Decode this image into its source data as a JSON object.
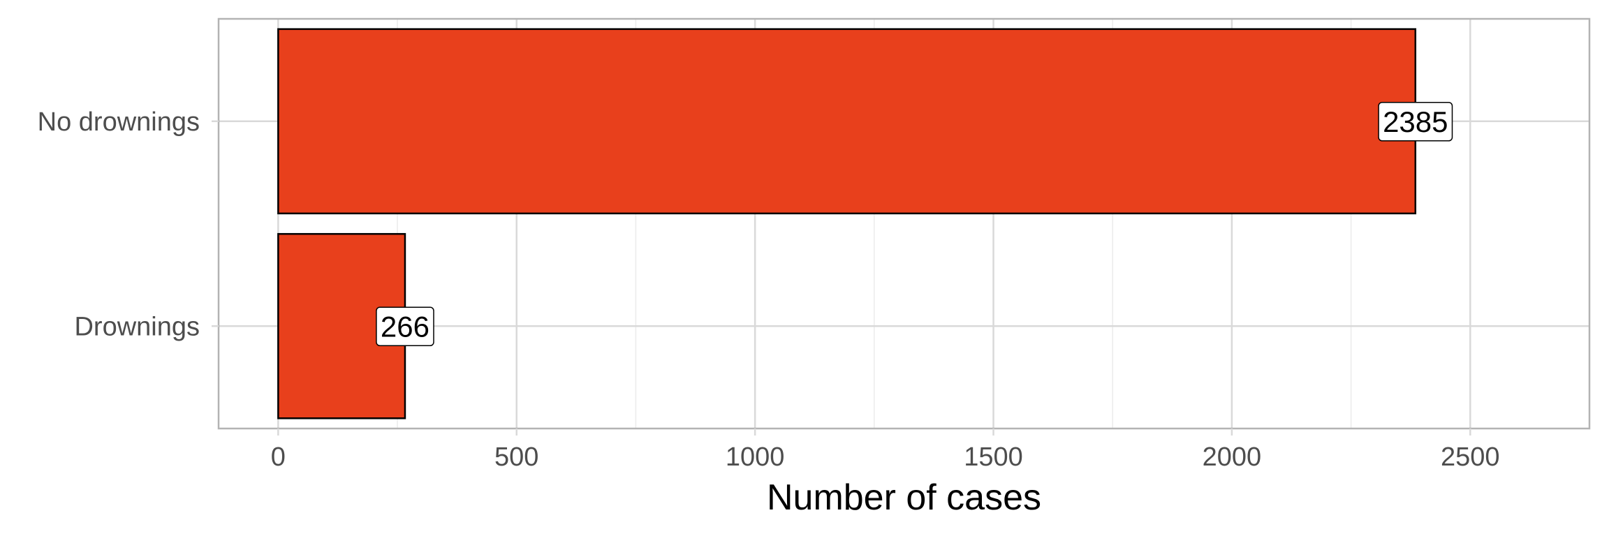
{
  "chart_data": {
    "type": "bar",
    "orientation": "horizontal",
    "categories": [
      "No drownings",
      "Drownings"
    ],
    "values": [
      2385,
      266
    ],
    "data_labels": [
      "2385",
      "266"
    ],
    "title": "",
    "xlabel": "Number of cases",
    "ylabel": "",
    "xlim": [
      -125,
      2750
    ],
    "x_ticks": [
      0,
      500,
      1000,
      1500,
      2000,
      2500
    ],
    "x_tick_labels": [
      "0",
      "500",
      "1000",
      "1500",
      "2000",
      "2500"
    ],
    "grid": true,
    "legend": "none",
    "colors": {
      "bar_fill": "#E8401C",
      "bar_stroke": "#000000",
      "grid_major": "#d9d9d9",
      "grid_minor": "#ebebeb",
      "panel_border": "#b3b3b3",
      "tick_text": "#4d4d4d",
      "label_box_fill": "#ffffff"
    }
  }
}
